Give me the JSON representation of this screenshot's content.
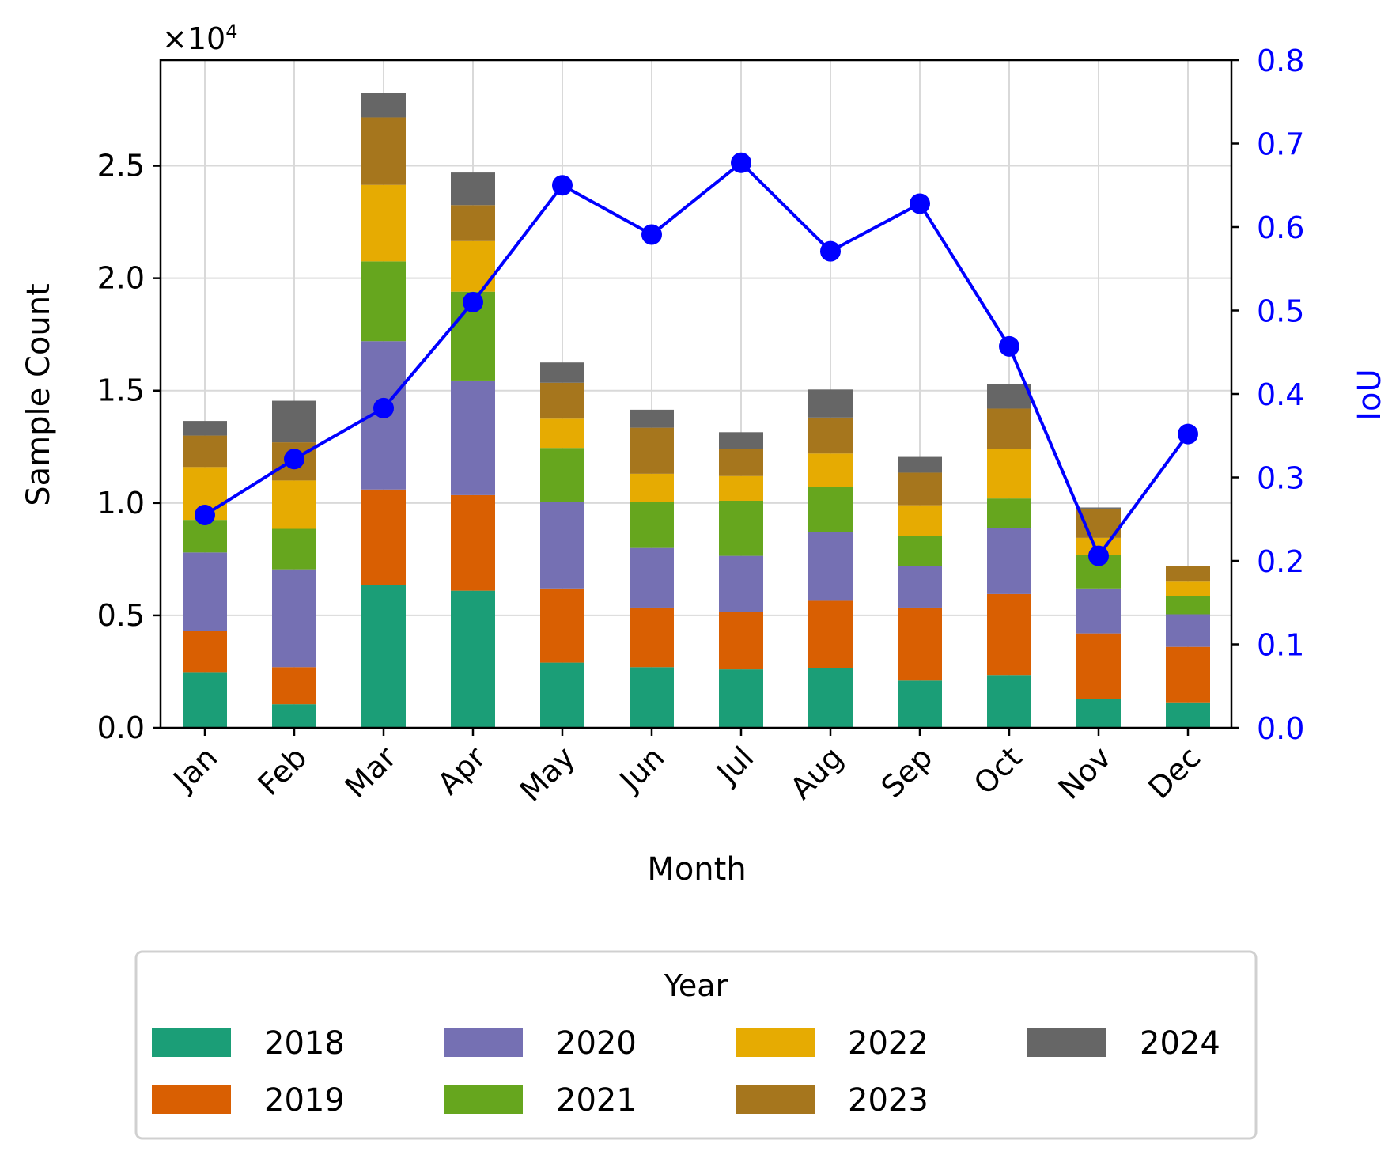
{
  "chart_data": {
    "type": "bar",
    "stacked": true,
    "categories": [
      "Jan",
      "Feb",
      "Mar",
      "Apr",
      "May",
      "Jun",
      "Jul",
      "Aug",
      "Sep",
      "Oct",
      "Nov",
      "Dec"
    ],
    "series": [
      {
        "name": "2018",
        "color": "#1b9e77",
        "values": [
          2450,
          1050,
          6350,
          6100,
          2900,
          2700,
          2600,
          2650,
          2100,
          2350,
          1300,
          1100
        ]
      },
      {
        "name": "2019",
        "color": "#d95f02",
        "values": [
          1850,
          1650,
          4250,
          4250,
          3300,
          2650,
          2550,
          3000,
          3250,
          3600,
          2900,
          2500
        ]
      },
      {
        "name": "2020",
        "color": "#7570b3",
        "values": [
          3500,
          4350,
          6600,
          5100,
          3850,
          2650,
          2500,
          3050,
          1850,
          2950,
          2000,
          1450
        ]
      },
      {
        "name": "2021",
        "color": "#66a61e",
        "values": [
          1450,
          1800,
          3550,
          3950,
          2400,
          2050,
          2450,
          2000,
          1350,
          1300,
          1500,
          800
        ]
      },
      {
        "name": "2022",
        "color": "#e6ab02",
        "values": [
          2350,
          2150,
          3400,
          2250,
          1300,
          1250,
          1100,
          1500,
          1350,
          2200,
          750,
          650
        ]
      },
      {
        "name": "2023",
        "color": "#a6761d",
        "values": [
          1400,
          1700,
          3000,
          1600,
          1600,
          2050,
          1200,
          1600,
          1450,
          1800,
          1300,
          700
        ]
      },
      {
        "name": "2024",
        "color": "#666666",
        "values": [
          650,
          1850,
          1100,
          1450,
          900,
          800,
          750,
          1250,
          700,
          1100,
          50,
          0
        ]
      }
    ],
    "line_series": {
      "name": "IoU",
      "color": "#0000ff",
      "axis": "right",
      "values": [
        0.255,
        0.322,
        0.383,
        0.51,
        0.65,
        0.591,
        0.677,
        0.571,
        0.628,
        0.457,
        0.206,
        0.352
      ]
    },
    "xlabel": "Month",
    "ylabel": "Sample Count",
    "y2label": "IoU",
    "y_multiplier_label": "×10",
    "y_multiplier_exp": "4",
    "ylim": [
      0,
      29700
    ],
    "yticks": [
      0,
      5000,
      10000,
      15000,
      20000,
      25000
    ],
    "yticklabels": [
      "0.0",
      "0.5",
      "1.0",
      "1.5",
      "2.0",
      "2.5"
    ],
    "y2lim": [
      0,
      0.8
    ],
    "y2ticks": [
      0,
      0.1,
      0.2,
      0.3,
      0.4,
      0.5,
      0.6,
      0.7,
      0.8
    ],
    "y2ticklabels": [
      "0.0",
      "0.1",
      "0.2",
      "0.3",
      "0.4",
      "0.5",
      "0.6",
      "0.7",
      "0.8"
    ],
    "grid": true,
    "legend": {
      "title": "Year",
      "placement": "bottom-center",
      "columns": 4
    }
  }
}
